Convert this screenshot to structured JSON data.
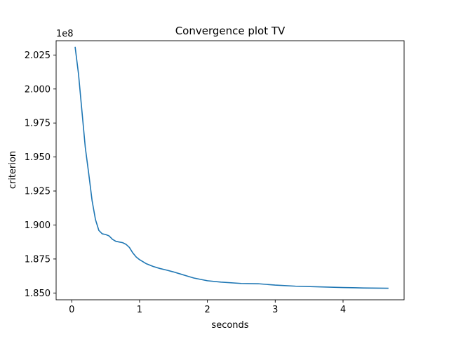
{
  "chart_data": {
    "type": "line",
    "title": "Convergence plot TV",
    "xlabel": "seconds",
    "ylabel": "criterion",
    "offset_label": "1e8",
    "xlim": [
      -0.23,
      4.9
    ],
    "ylim": [
      1.845,
      2.0355
    ],
    "xticks": [
      0,
      1,
      2,
      3,
      4
    ],
    "xtick_labels": [
      "0",
      "1",
      "2",
      "3",
      "4"
    ],
    "yticks": [
      1.85,
      1.875,
      1.9,
      1.925,
      1.95,
      1.975,
      2.0,
      2.025
    ],
    "ytick_labels": [
      "1.850",
      "1.875",
      "1.900",
      "1.925",
      "1.950",
      "1.975",
      "2.000",
      "2.025"
    ],
    "grid": false,
    "series": [
      {
        "color": "#1f77b4",
        "x": [
          0.05,
          0.1,
          0.15,
          0.2,
          0.25,
          0.3,
          0.35,
          0.4,
          0.45,
          0.5,
          0.55,
          0.6,
          0.65,
          0.7,
          0.75,
          0.8,
          0.85,
          0.9,
          0.95,
          1.0,
          1.1,
          1.2,
          1.3,
          1.4,
          1.5,
          1.6,
          1.7,
          1.8,
          2.0,
          2.2,
          2.5,
          2.75,
          3.0,
          3.3,
          3.6,
          4.0,
          4.3,
          4.67
        ],
        "y": [
          2.031,
          2.011,
          1.984,
          1.957,
          1.938,
          1.918,
          1.904,
          1.896,
          1.8935,
          1.893,
          1.892,
          1.8895,
          1.888,
          1.8875,
          1.887,
          1.8858,
          1.8835,
          1.8795,
          1.8765,
          1.8745,
          1.8715,
          1.8695,
          1.868,
          1.8668,
          1.8655,
          1.864,
          1.8625,
          1.861,
          1.859,
          1.858,
          1.857,
          1.8568,
          1.8558,
          1.855,
          1.8546,
          1.854,
          1.8537,
          1.8535
        ]
      }
    ]
  }
}
